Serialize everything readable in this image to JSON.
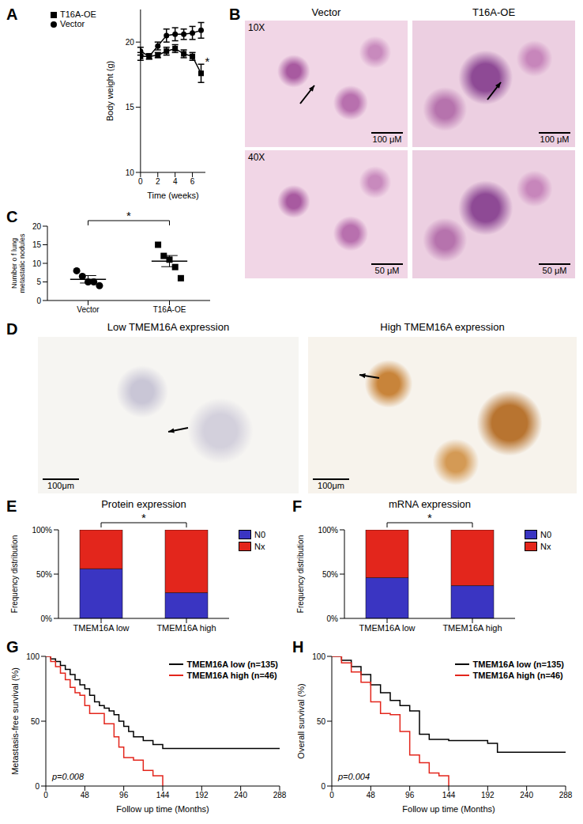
{
  "chart_data": [
    {
      "panel": "A",
      "type": "line",
      "x_label": "Time (weeks)",
      "y_label": "Body weight (g)",
      "xlim": [
        0,
        7.5
      ],
      "xticks": [
        0,
        2,
        4,
        6
      ],
      "ylim": [
        10,
        22.5
      ],
      "yticks": [
        10,
        15,
        20
      ],
      "legend": "top left",
      "annotation": "*",
      "x": [
        0,
        1,
        2,
        3,
        4,
        5,
        6,
        7
      ],
      "series": [
        {
          "name": "Vector",
          "color": "#000000",
          "marker": "circle",
          "values": [
            19.3,
            18.9,
            19.7,
            20.5,
            20.6,
            20.6,
            20.7,
            20.9
          ],
          "errors": [
            0.3,
            0.2,
            0.3,
            0.5,
            0.5,
            0.4,
            0.5,
            0.6
          ]
        },
        {
          "name": "T16A-OE",
          "color": "#000000",
          "marker": "square",
          "values": [
            18.9,
            18.9,
            19.0,
            19.3,
            19.5,
            19.1,
            18.9,
            17.6
          ],
          "errors": [
            0.3,
            0.2,
            0.2,
            0.3,
            0.3,
            0.3,
            0.3,
            0.7
          ]
        }
      ]
    },
    {
      "panel": "C",
      "type": "scatter",
      "y_label": "Number o f lung metastatic nodules",
      "ylim": [
        0,
        20
      ],
      "yticks": [
        0,
        5,
        10,
        15,
        20
      ],
      "annotation": "*",
      "groups": [
        {
          "category": "Vector",
          "marker": "circle",
          "color": "#000000",
          "values": [
            8,
            6.5,
            5,
            5,
            4
          ],
          "mean": 5.7,
          "sem": 1.0
        },
        {
          "category": "T16A-OE",
          "marker": "square",
          "color": "#000000",
          "values": [
            15,
            12,
            11,
            9,
            6
          ],
          "mean": 10.6,
          "sem": 1.5
        }
      ]
    },
    {
      "panel": "E",
      "type": "bar",
      "stacked": true,
      "title": "Protein expression",
      "y_label": "Frequency distribution",
      "categories": [
        "TMEM16A low",
        "TMEM16A high"
      ],
      "ylim": [
        0,
        100
      ],
      "yticks": [
        {
          "value": 0,
          "label": "0%"
        },
        {
          "value": 50,
          "label": "50%"
        },
        {
          "value": 100,
          "label": "100%"
        }
      ],
      "legend": "right",
      "annotation": "*",
      "series": [
        {
          "name": "N0",
          "color": "#3a35c2",
          "values": [
            56,
            29
          ]
        },
        {
          "name": "Nx",
          "color": "#e3261c",
          "values": [
            44,
            71
          ]
        }
      ]
    },
    {
      "panel": "F",
      "type": "bar",
      "stacked": true,
      "title": "mRNA expression",
      "y_label": "Frequency distribution",
      "categories": [
        "TMEM16A low",
        "TMEM16A high"
      ],
      "ylim": [
        0,
        100
      ],
      "yticks": [
        {
          "value": 0,
          "label": "0%"
        },
        {
          "value": 50,
          "label": "50%"
        },
        {
          "value": 100,
          "label": "100%"
        }
      ],
      "legend": "right",
      "annotation": "*",
      "series": [
        {
          "name": "N0",
          "color": "#3a35c2",
          "values": [
            46,
            37
          ]
        },
        {
          "name": "Nx",
          "color": "#e3261c",
          "values": [
            54,
            63
          ]
        }
      ]
    },
    {
      "panel": "G",
      "type": "line",
      "line_style": "step",
      "x_label": "Follow up time (Months)",
      "y_label": "Metastasis-free survival (%)",
      "xlim": [
        0,
        288
      ],
      "xticks": [
        0,
        48,
        96,
        144,
        192,
        240,
        288
      ],
      "ylim": [
        0,
        100
      ],
      "yticks": [
        0,
        50,
        100
      ],
      "legend": "top right",
      "annotation": "p=0.008",
      "series": [
        {
          "name": "TMEM16A low (n=135)",
          "color": "#000000",
          "x": [
            0,
            6,
            12,
            18,
            24,
            30,
            36,
            42,
            48,
            54,
            60,
            66,
            72,
            78,
            84,
            90,
            96,
            102,
            108,
            120,
            132,
            144,
            288
          ],
          "values": [
            100,
            98,
            96,
            93,
            90,
            86,
            82,
            78,
            75,
            70,
            65,
            62,
            60,
            58,
            55,
            50,
            46,
            42,
            38,
            35,
            32,
            29,
            29
          ]
        },
        {
          "name": "TMEM16A high (n=46)",
          "color": "#e3261c",
          "x": [
            0,
            6,
            12,
            18,
            24,
            30,
            36,
            42,
            48,
            54,
            72,
            84,
            90,
            96,
            108,
            120,
            132,
            144
          ],
          "values": [
            100,
            96,
            92,
            87,
            82,
            76,
            72,
            70,
            62,
            56,
            48,
            38,
            30,
            22,
            20,
            12,
            8,
            0
          ]
        }
      ]
    },
    {
      "panel": "H",
      "type": "line",
      "line_style": "step",
      "x_label": "Follow up time (Months)",
      "y_label": "Overall survival (%)",
      "xlim": [
        0,
        288
      ],
      "xticks": [
        0,
        48,
        96,
        144,
        192,
        240,
        288
      ],
      "ylim": [
        0,
        100
      ],
      "yticks": [
        0,
        50,
        100
      ],
      "legend": "top right",
      "annotation": "p=0.004",
      "series": [
        {
          "name": "TMEM16A low (n=135)",
          "color": "#000000",
          "x": [
            0,
            12,
            24,
            36,
            48,
            60,
            72,
            84,
            96,
            108,
            120,
            144,
            192,
            204,
            288
          ],
          "values": [
            100,
            97,
            92,
            86,
            78,
            72,
            66,
            62,
            58,
            40,
            36,
            35,
            33,
            26,
            26
          ]
        },
        {
          "name": "TMEM16A high (n=46)",
          "color": "#e3261c",
          "x": [
            0,
            12,
            24,
            36,
            48,
            60,
            72,
            84,
            96,
            108,
            120,
            132,
            144
          ],
          "values": [
            100,
            95,
            88,
            80,
            65,
            56,
            55,
            42,
            24,
            18,
            10,
            8,
            0
          ]
        }
      ]
    }
  ],
  "images": [
    {
      "panel": "B",
      "columns": [
        "Vector",
        "T16A-OE"
      ],
      "rows": [
        {
          "magnification": "10X",
          "scale_bar": "100 μM"
        },
        {
          "magnification": "40X",
          "scale_bar": "50 μM"
        }
      ]
    },
    {
      "panel": "D",
      "columns": [
        {
          "title": "Low TMEM16A expression",
          "scale_bar": "100μm"
        },
        {
          "title": "High TMEM16A expression",
          "scale_bar": "100μm"
        }
      ]
    }
  ]
}
